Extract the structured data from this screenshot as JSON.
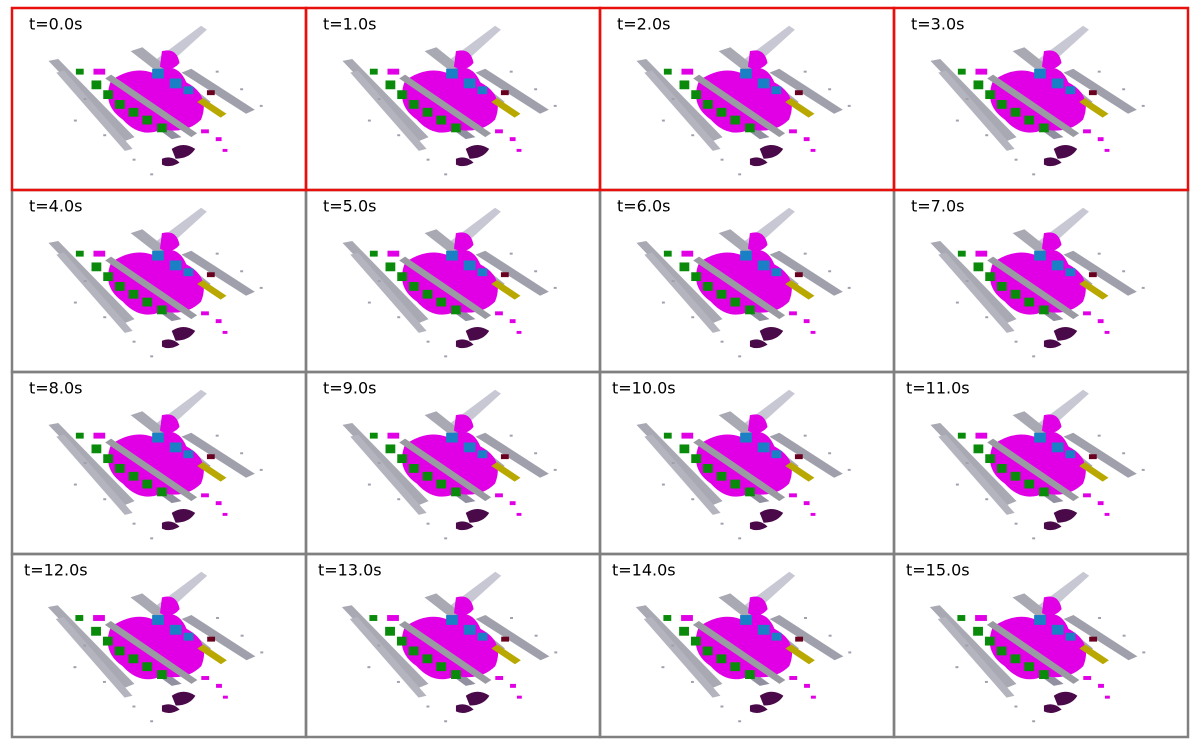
{
  "panels": [
    {
      "label": "t=0.0s"
    },
    {
      "label": "t=1.0s"
    },
    {
      "label": "t=2.0s"
    },
    {
      "label": "t=3.0s"
    },
    {
      "label": "t=4.0s"
    },
    {
      "label": "t=5.0s"
    },
    {
      "label": "t=6.0s"
    },
    {
      "label": "t=7.0s"
    },
    {
      "label": "t=8.0s"
    },
    {
      "label": "t=9.0s"
    },
    {
      "label": "t=10.0s"
    },
    {
      "label": "t=11.0s"
    },
    {
      "label": "t=12.0s"
    },
    {
      "label": "t=13.0s"
    },
    {
      "label": "t=14.0s"
    },
    {
      "label": "t=15.0s"
    }
  ]
}
